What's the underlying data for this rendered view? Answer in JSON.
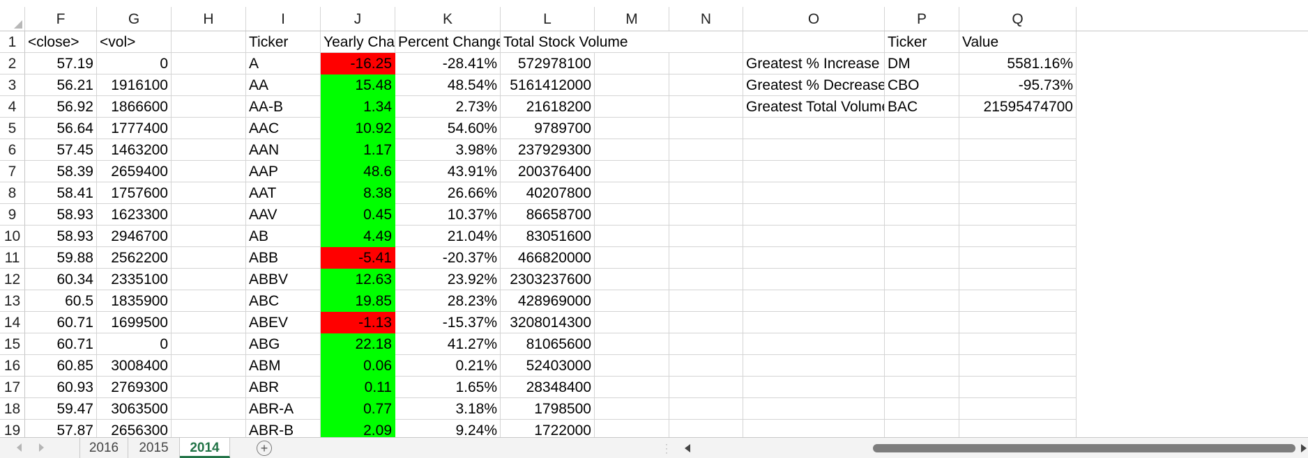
{
  "spreadsheet": {
    "columns": [
      "F",
      "G",
      "H",
      "I",
      "J",
      "K",
      "L",
      "M",
      "N",
      "O",
      "P",
      "Q"
    ],
    "header_row": {
      "row_number": "1",
      "F": "<close>",
      "G": "<vol>",
      "H": "",
      "I": "Ticker",
      "J": "Yearly Change",
      "K": "Percent Change",
      "L": "Total Stock Volume",
      "M": "",
      "N": "",
      "O": "",
      "P": "Ticker",
      "Q": "Value"
    },
    "rows": [
      {
        "row_number": "2",
        "close": "57.19",
        "vol": "0",
        "ticker": "A",
        "yearly_change": "-16.25",
        "change_sign": "negative",
        "percent_change": "-28.41%",
        "total_volume": "572978100",
        "summary_label": "Greatest % Increase",
        "summary_ticker": "DM",
        "summary_value": "5581.16%"
      },
      {
        "row_number": "3",
        "close": "56.21",
        "vol": "1916100",
        "ticker": "AA",
        "yearly_change": "15.48",
        "change_sign": "positive",
        "percent_change": "48.54%",
        "total_volume": "5161412000",
        "summary_label": "Greatest % Decrease",
        "summary_ticker": "CBO",
        "summary_value": "-95.73%"
      },
      {
        "row_number": "4",
        "close": "56.92",
        "vol": "1866600",
        "ticker": "AA-B",
        "yearly_change": "1.34",
        "change_sign": "positive",
        "percent_change": "2.73%",
        "total_volume": "21618200",
        "summary_label": "Greatest Total Volume",
        "summary_ticker": "BAC",
        "summary_value": "21595474700"
      },
      {
        "row_number": "5",
        "close": "56.64",
        "vol": "1777400",
        "ticker": "AAC",
        "yearly_change": "10.92",
        "change_sign": "positive",
        "percent_change": "54.60%",
        "total_volume": "9789700"
      },
      {
        "row_number": "6",
        "close": "57.45",
        "vol": "1463200",
        "ticker": "AAN",
        "yearly_change": "1.17",
        "change_sign": "positive",
        "percent_change": "3.98%",
        "total_volume": "237929300"
      },
      {
        "row_number": "7",
        "close": "58.39",
        "vol": "2659400",
        "ticker": "AAP",
        "yearly_change": "48.6",
        "change_sign": "positive",
        "percent_change": "43.91%",
        "total_volume": "200376400"
      },
      {
        "row_number": "8",
        "close": "58.41",
        "vol": "1757600",
        "ticker": "AAT",
        "yearly_change": "8.38",
        "change_sign": "positive",
        "percent_change": "26.66%",
        "total_volume": "40207800"
      },
      {
        "row_number": "9",
        "close": "58.93",
        "vol": "1623300",
        "ticker": "AAV",
        "yearly_change": "0.45",
        "change_sign": "positive",
        "percent_change": "10.37%",
        "total_volume": "86658700"
      },
      {
        "row_number": "10",
        "close": "58.93",
        "vol": "2946700",
        "ticker": "AB",
        "yearly_change": "4.49",
        "change_sign": "positive",
        "percent_change": "21.04%",
        "total_volume": "83051600"
      },
      {
        "row_number": "11",
        "close": "59.88",
        "vol": "2562200",
        "ticker": "ABB",
        "yearly_change": "-5.41",
        "change_sign": "negative",
        "percent_change": "-20.37%",
        "total_volume": "466820000"
      },
      {
        "row_number": "12",
        "close": "60.34",
        "vol": "2335100",
        "ticker": "ABBV",
        "yearly_change": "12.63",
        "change_sign": "positive",
        "percent_change": "23.92%",
        "total_volume": "2303237600"
      },
      {
        "row_number": "13",
        "close": "60.5",
        "vol": "1835900",
        "ticker": "ABC",
        "yearly_change": "19.85",
        "change_sign": "positive",
        "percent_change": "28.23%",
        "total_volume": "428969000"
      },
      {
        "row_number": "14",
        "close": "60.71",
        "vol": "1699500",
        "ticker": "ABEV",
        "yearly_change": "-1.13",
        "change_sign": "negative",
        "percent_change": "-15.37%",
        "total_volume": "3208014300"
      },
      {
        "row_number": "15",
        "close": "60.71",
        "vol": "0",
        "ticker": "ABG",
        "yearly_change": "22.18",
        "change_sign": "positive",
        "percent_change": "41.27%",
        "total_volume": "81065600"
      },
      {
        "row_number": "16",
        "close": "60.85",
        "vol": "3008400",
        "ticker": "ABM",
        "yearly_change": "0.06",
        "change_sign": "positive",
        "percent_change": "0.21%",
        "total_volume": "52403000"
      },
      {
        "row_number": "17",
        "close": "60.93",
        "vol": "2769300",
        "ticker": "ABR",
        "yearly_change": "0.11",
        "change_sign": "positive",
        "percent_change": "1.65%",
        "total_volume": "28348400"
      },
      {
        "row_number": "18",
        "close": "59.47",
        "vol": "3063500",
        "ticker": "ABR-A",
        "yearly_change": "0.77",
        "change_sign": "positive",
        "percent_change": "3.18%",
        "total_volume": "1798500"
      },
      {
        "row_number": "19",
        "close": "57.87",
        "vol": "2656300",
        "ticker": "ABR-B",
        "yearly_change": "2.09",
        "change_sign": "positive",
        "percent_change": "9.24%",
        "total_volume": "1722000"
      }
    ],
    "colors": {
      "positive_fill": "#00ff00",
      "negative_fill": "#ff0000",
      "active_tab": "#217346"
    }
  },
  "sheet_tabs": {
    "tabs": [
      "2016",
      "2015",
      "2014"
    ],
    "active": "2014",
    "add_icon": "plus-circle-icon"
  }
}
